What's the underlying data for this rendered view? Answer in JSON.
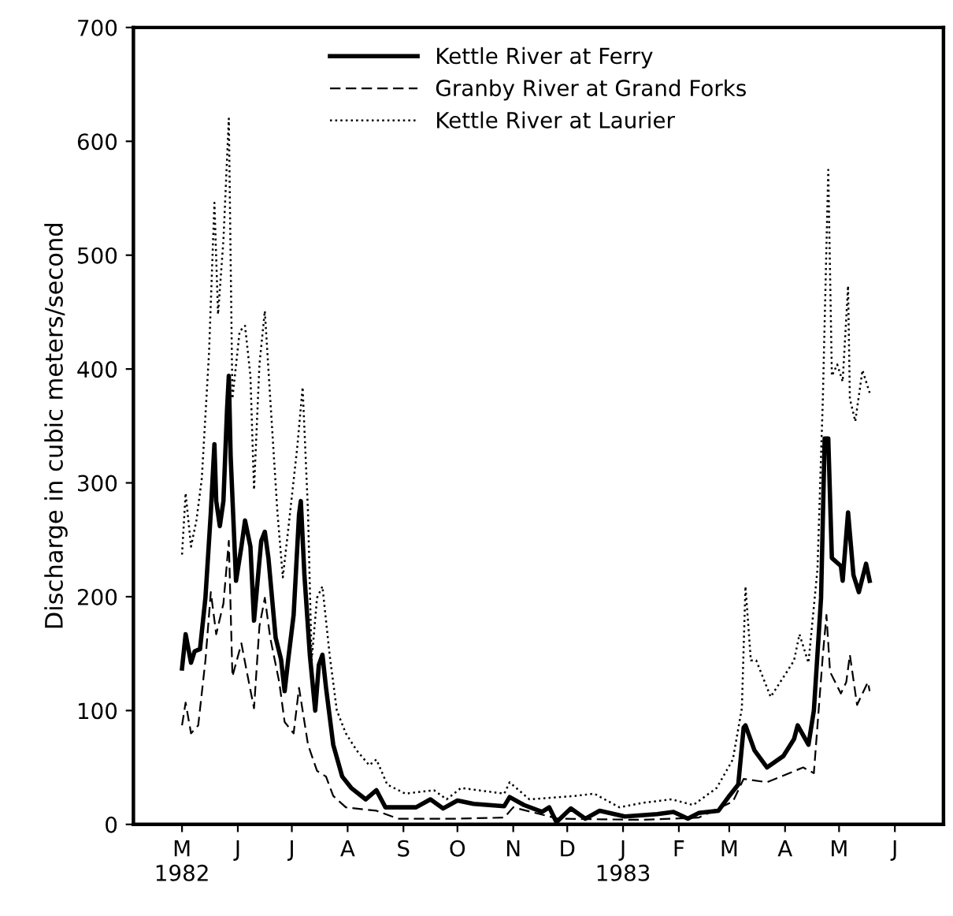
{
  "chart_data": {
    "type": "line",
    "ylabel": "Discharge in cubic meters/second",
    "xlim": [
      "1982-04-04",
      "1983-06-28"
    ],
    "ylim": [
      0,
      700
    ],
    "yticks": [
      0,
      100,
      200,
      300,
      400,
      500,
      600,
      700
    ],
    "xticks": [
      {
        "value": "1982-05-01",
        "label": "M\n1982"
      },
      {
        "value": "1982-06-01",
        "label": "J"
      },
      {
        "value": "1982-07-01",
        "label": "J"
      },
      {
        "value": "1982-08-01",
        "label": "A"
      },
      {
        "value": "1982-09-01",
        "label": "S"
      },
      {
        "value": "1982-10-01",
        "label": "O"
      },
      {
        "value": "1982-11-01",
        "label": "N"
      },
      {
        "value": "1982-12-01",
        "label": "D"
      },
      {
        "value": "1983-01-01",
        "label": "J\n1983"
      },
      {
        "value": "1983-02-01",
        "label": "F"
      },
      {
        "value": "1983-03-01",
        "label": "M"
      },
      {
        "value": "1983-04-01",
        "label": "A"
      },
      {
        "value": "1983-05-01",
        "label": "M"
      },
      {
        "value": "1983-06-01",
        "label": "J"
      }
    ],
    "grid": false,
    "legend": "top",
    "series": [
      {
        "name": "Kettle River at Ferry",
        "color": "#000000",
        "line_style": "solid",
        "x": [
          "1982-05-01",
          "1982-05-03",
          "1982-05-06",
          "1982-05-08",
          "1982-05-11",
          "1982-05-14",
          "1982-05-17",
          "1982-05-19",
          "1982-05-20",
          "1982-05-22",
          "1982-05-24",
          "1982-05-26",
          "1982-05-27",
          "1982-05-28",
          "1982-05-31",
          "1982-06-03",
          "1982-06-05",
          "1982-06-08",
          "1982-06-10",
          "1982-06-14",
          "1982-06-16",
          "1982-06-18",
          "1982-06-22",
          "1982-06-25",
          "1982-06-27",
          "1982-06-29",
          "1982-07-02",
          "1982-07-05",
          "1982-07-06",
          "1982-07-08",
          "1982-07-11",
          "1982-07-14",
          "1982-07-16",
          "1982-07-18",
          "1982-07-20",
          "1982-07-24",
          "1982-07-29",
          "1982-08-03",
          "1982-08-11",
          "1982-08-17",
          "1982-08-22",
          "1982-08-29",
          "1982-09-08",
          "1982-09-16",
          "1982-09-23",
          "1982-10-01",
          "1982-10-10",
          "1982-10-27",
          "1982-10-30",
          "1982-11-07",
          "1982-11-17",
          "1982-11-21",
          "1982-11-25",
          "1982-12-03",
          "1982-12-11",
          "1982-12-19",
          "1983-01-02",
          "1983-01-20",
          "1983-01-29",
          "1983-02-06",
          "1983-02-12",
          "1983-02-23",
          "1983-03-01",
          "1983-03-06",
          "1983-03-09",
          "1983-03-10",
          "1983-03-15",
          "1983-03-22",
          "1983-03-31",
          "1983-04-06",
          "1983-04-08",
          "1983-04-14",
          "1983-04-17",
          "1983-04-21",
          "1983-04-23",
          "1983-04-25",
          "1983-04-27",
          "1983-05-02",
          "1983-05-03",
          "1983-05-06",
          "1983-05-09",
          "1983-05-12",
          "1983-05-16",
          "1983-05-18"
        ],
        "values": [
          137,
          167,
          142,
          152,
          154,
          199,
          274,
          334,
          284,
          262,
          284,
          364,
          394,
          324,
          214,
          244,
          267,
          244,
          179,
          249,
          257,
          234,
          164,
          145,
          117,
          145,
          184,
          272,
          284,
          219,
          149,
          100,
          140,
          149,
          120,
          70,
          42,
          32,
          22,
          30,
          15,
          15,
          15,
          22,
          14,
          21,
          18,
          16,
          24,
          17,
          11,
          15,
          2,
          14,
          5,
          12,
          7,
          9,
          11,
          5,
          10,
          12,
          25,
          35,
          85,
          87,
          65,
          50,
          60,
          75,
          87,
          70,
          100,
          199,
          339,
          339,
          234,
          227,
          214,
          274,
          219,
          204,
          229,
          214
        ]
      },
      {
        "name": "Granby River at Grand Forks",
        "color": "#000000",
        "line_style": "dashed",
        "x": [
          "1982-05-01",
          "1982-05-03",
          "1982-05-06",
          "1982-05-10",
          "1982-05-14",
          "1982-05-17",
          "1982-05-20",
          "1982-05-24",
          "1982-05-27",
          "1982-05-29",
          "1982-06-03",
          "1982-06-06",
          "1982-06-10",
          "1982-06-13",
          "1982-06-16",
          "1982-06-19",
          "1982-06-24",
          "1982-06-27",
          "1982-07-02",
          "1982-07-05",
          "1982-07-10",
          "1982-07-15",
          "1982-07-20",
          "1982-07-24",
          "1982-07-31",
          "1982-08-17",
          "1982-08-29",
          "1982-10-01",
          "1982-10-27",
          "1982-11-01",
          "1982-11-26",
          "1983-01-12",
          "1983-02-12",
          "1983-03-03",
          "1983-03-09",
          "1983-03-22",
          "1983-04-11",
          "1983-04-17",
          "1983-04-22",
          "1983-04-24",
          "1983-04-26",
          "1983-05-02",
          "1983-05-05",
          "1983-05-07",
          "1983-05-11",
          "1983-05-17",
          "1983-05-18"
        ],
        "values": [
          87,
          107,
          80,
          87,
          144,
          204,
          167,
          194,
          249,
          130,
          159,
          134,
          102,
          174,
          199,
          164,
          125,
          90,
          80,
          120,
          70,
          47,
          42,
          25,
          15,
          12,
          5,
          5,
          6,
          15,
          5,
          4,
          6,
          20,
          40,
          37,
          50,
          45,
          149,
          184,
          134,
          115,
          125,
          149,
          105,
          125,
          117
        ]
      },
      {
        "name": "Kettle River at Laurier",
        "color": "#000000",
        "line_style": "dotted",
        "x": [
          "1982-05-01",
          "1982-05-03",
          "1982-05-06",
          "1982-05-09",
          "1982-05-12",
          "1982-05-16",
          "1982-05-19",
          "1982-05-21",
          "1982-05-24",
          "1982-05-27",
          "1982-05-29",
          "1982-06-02",
          "1982-06-05",
          "1982-06-08",
          "1982-06-10",
          "1982-06-13",
          "1982-06-16",
          "1982-06-19",
          "1982-06-23",
          "1982-06-26",
          "1982-06-29",
          "1982-07-04",
          "1982-07-07",
          "1982-07-10",
          "1982-07-12",
          "1982-07-15",
          "1982-07-18",
          "1982-07-22",
          "1982-07-26",
          "1982-07-31",
          "1982-08-06",
          "1982-08-13",
          "1982-08-17",
          "1982-08-23",
          "1982-09-02",
          "1982-09-18",
          "1982-09-25",
          "1982-10-03",
          "1982-10-27",
          "1982-10-30",
          "1982-11-10",
          "1982-12-05",
          "1982-12-16",
          "1982-12-30",
          "1983-01-12",
          "1983-01-28",
          "1983-02-09",
          "1983-02-22",
          "1983-03-03",
          "1983-03-08",
          "1983-03-10",
          "1983-03-13",
          "1983-03-16",
          "1983-03-24",
          "1983-04-02",
          "1983-04-06",
          "1983-04-09",
          "1983-04-14",
          "1983-04-19",
          "1983-04-22",
          "1983-04-25",
          "1983-04-27",
          "1983-04-30",
          "1983-05-03",
          "1983-05-06",
          "1983-05-07",
          "1983-05-10",
          "1983-05-14",
          "1983-05-17",
          "1983-05-18"
        ],
        "values": [
          237,
          291,
          244,
          267,
          304,
          414,
          546,
          448,
          513,
          620,
          374,
          433,
          438,
          394,
          294,
          404,
          451,
          374,
          274,
          217,
          259,
          331,
          384,
          274,
          144,
          199,
          209,
          149,
          100,
          80,
          65,
          52,
          57,
          35,
          27,
          30,
          22,
          32,
          27,
          37,
          22,
          25,
          27,
          15,
          19,
          22,
          17,
          32,
          57,
          102,
          209,
          144,
          144,
          112,
          134,
          144,
          167,
          142,
          224,
          374,
          575,
          394,
          404,
          389,
          473,
          374,
          354,
          399,
          384,
          379
        ]
      }
    ]
  }
}
